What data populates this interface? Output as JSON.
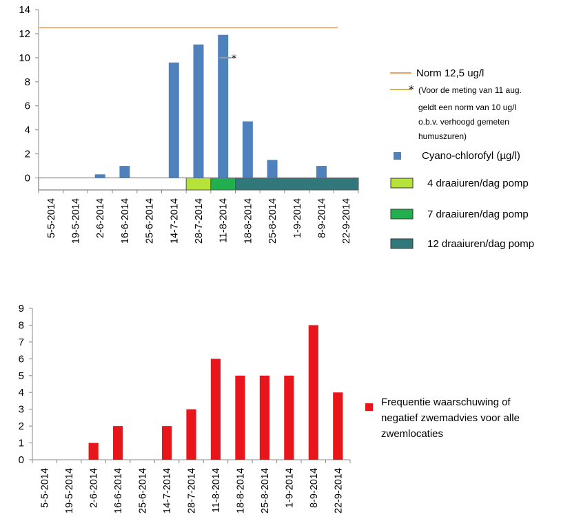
{
  "colors": {
    "chlorophyll": "#4f81bd",
    "norm": "#f0a060",
    "norm_special": "#d8b24a",
    "pump4": "#b6e33a",
    "pump7": "#22b04f",
    "pump12": "#31787a",
    "frequency": "#e8151b"
  },
  "chart_data": [
    {
      "type": "bar",
      "categories": [
        "5-5-2014",
        "19-5-2014",
        "2-6-2014",
        "16-6-2014",
        "25-6-2014",
        "14-7-2014",
        "28-7-2014",
        "11-8-2014",
        "18-8-2014",
        "25-8-2014",
        "1-9-2014",
        "8-9-2014",
        "22-9-2014"
      ],
      "series": [
        {
          "name": "Cyano-chlorofyl (µg/l)",
          "values": [
            0,
            0,
            0.3,
            1.0,
            0,
            9.6,
            11.1,
            11.9,
            4.7,
            1.5,
            0,
            1.0,
            0
          ]
        }
      ],
      "ylim": [
        -1,
        14
      ],
      "yticks": [
        0,
        2,
        4,
        6,
        8,
        10,
        12,
        14
      ],
      "norm_line": {
        "label": "Norm 12,5 ug/l",
        "value": 12.5
      },
      "special_norm": {
        "value": 10,
        "category": "11-8-2014",
        "marker": "*",
        "label_lines": [
          "(Voor de meting van 11 aug.",
          "geldt een norm van 10 ug/l",
          "o.b.v. verhoogd gemeten",
          "humuszuren)"
        ]
      },
      "pump_periods": [
        {
          "label": "4 draaiuren/dag  pomp",
          "from": "28-7-2014",
          "to": "11-8-2014"
        },
        {
          "label": "7 draaiuren/dag  pomp",
          "from": "11-8-2014",
          "to": "18-8-2014"
        },
        {
          "label": "12 draaiuren/dag  pomp",
          "from": "18-8-2014",
          "to": "22-9-2014"
        }
      ],
      "legend_position": "right"
    },
    {
      "type": "bar",
      "categories": [
        "5-5-2014",
        "19-5-2014",
        "2-6-2014",
        "16-6-2014",
        "25-6-2014",
        "14-7-2014",
        "28-7-2014",
        "11-8-2014",
        "18-8-2014",
        "25-8-2014",
        "1-9-2014",
        "8-9-2014",
        "22-9-2014"
      ],
      "series": [
        {
          "name": "Frequentie waarschuwing of negatief zwemadvies voor alle zwemlocaties",
          "values": [
            0,
            0,
            1,
            2,
            0,
            2,
            3,
            6,
            5,
            5,
            5,
            8,
            4
          ]
        }
      ],
      "legend_lines": [
        "Frequentie waarschuwing of",
        "negatief zwemadvies voor alle",
        "zwemlocaties"
      ],
      "ylim": [
        0,
        9
      ],
      "yticks": [
        0,
        1,
        2,
        3,
        4,
        5,
        6,
        7,
        8,
        9
      ],
      "legend_position": "right"
    }
  ]
}
